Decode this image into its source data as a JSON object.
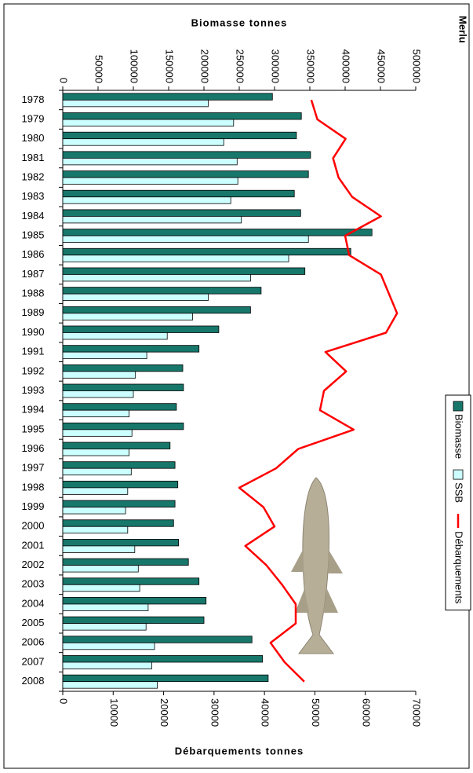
{
  "chart_data": {
    "type": "bar",
    "title": "Merlu",
    "ylabel": "Biomasse tonnes",
    "y2label": "Débarquements tonnes",
    "categories": [
      "1978",
      "1979",
      "1980",
      "1981",
      "1982",
      "1983",
      "1984",
      "1985",
      "1986",
      "1987",
      "1988",
      "1989",
      "1990",
      "1991",
      "1992",
      "1993",
      "1994",
      "1995",
      "1996",
      "1997",
      "1998",
      "1999",
      "2000",
      "2001",
      "2002",
      "2003",
      "2004",
      "2005",
      "2006",
      "2007",
      "2008"
    ],
    "series": [
      {
        "name": "Biomasse",
        "type": "bar",
        "color": "#17776b",
        "values": [
          297000,
          338000,
          331000,
          351000,
          348000,
          328000,
          337000,
          438000,
          408000,
          343000,
          281000,
          266000,
          221000,
          193000,
          170000,
          171000,
          161000,
          171000,
          152000,
          159000,
          163000,
          159000,
          157000,
          164000,
          178000,
          193000,
          203000,
          200000,
          268000,
          283000,
          291000
        ]
      },
      {
        "name": "SSB",
        "type": "bar",
        "color": "#ccffff",
        "values": [
          206000,
          242000,
          228000,
          247000,
          248000,
          238000,
          253000,
          348000,
          320000,
          266000,
          206000,
          184000,
          148000,
          119000,
          103000,
          100000,
          94000,
          98000,
          94000,
          97000,
          92000,
          89000,
          92000,
          102000,
          107000,
          109000,
          121000,
          118000,
          130000,
          126000,
          134000
        ]
      },
      {
        "name": "Débarquements",
        "type": "line",
        "axis": "y2",
        "color": "#ff0000",
        "values": [
          49300,
          50500,
          56100,
          53600,
          54700,
          57400,
          63100,
          56000,
          56800,
          63100,
          64700,
          66300,
          64100,
          52100,
          56200,
          51800,
          51000,
          57700,
          46700,
          42300,
          35000,
          39800,
          42000,
          36200,
          40400,
          43500,
          46200,
          46200,
          41200,
          44000,
          47900
        ]
      }
    ],
    "ylim": [
      0,
      500000
    ],
    "yticks": [
      0,
      50000,
      100000,
      150000,
      200000,
      250000,
      300000,
      350000,
      400000,
      450000,
      500000
    ],
    "y2lim": [
      0,
      70000
    ],
    "y2ticks": [
      0,
      10000,
      20000,
      30000,
      40000,
      50000,
      60000,
      70000
    ],
    "legend": "upper right",
    "grid": false
  }
}
